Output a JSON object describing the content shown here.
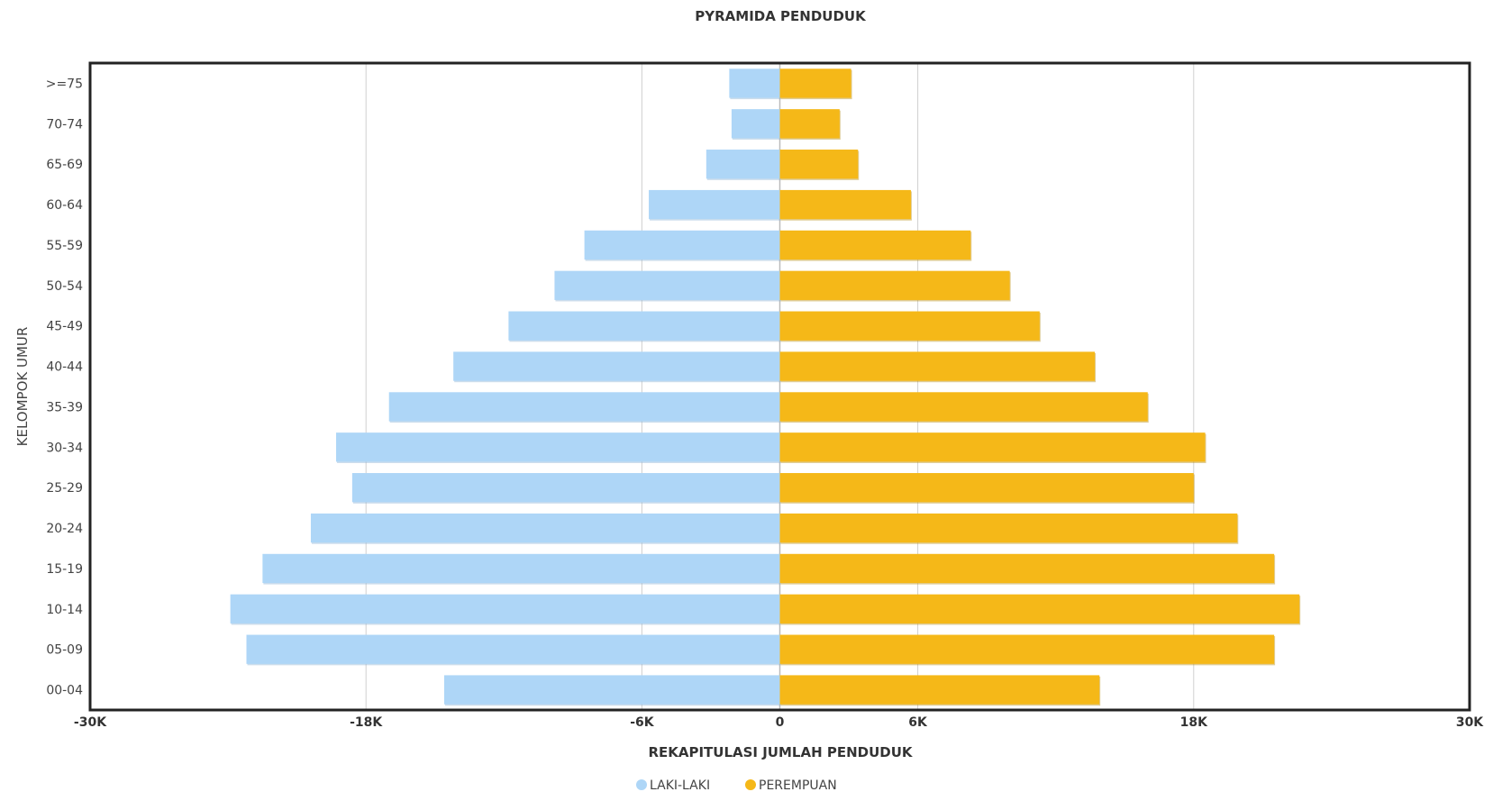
{
  "chart_data": {
    "type": "bar",
    "orientation": "horizontal",
    "title": "PYRAMIDA PENDUDUK",
    "xlabel": "REKAPITULASI JUMLAH PENDUDUK",
    "ylabel": "KELOMPOK UMUR",
    "xlim": [
      -30000,
      30000
    ],
    "xticks": [
      -30000,
      -18000,
      -6000,
      0,
      6000,
      18000,
      30000
    ],
    "xtick_labels": [
      "-30K",
      "-18K",
      "-6K",
      "0",
      "6K",
      "18K",
      "30K"
    ],
    "grid": true,
    "legend_position": "bottom-center",
    "categories": [
      ">=75",
      "70-74",
      "65-69",
      "60-64",
      "55-59",
      "50-54",
      "45-49",
      "40-44",
      "35-39",
      "30-34",
      "25-29",
      "20-24",
      "15-19",
      "10-14",
      "05-09",
      "00-04"
    ],
    "series": [
      {
        "name": "LAKI-LAKI",
        "color": "#aed6f7",
        "values": [
          -2200,
          -2100,
          -3200,
          -5700,
          -8500,
          -9800,
          -11800,
          -14200,
          -17000,
          -19300,
          -18600,
          -20400,
          -22500,
          -23900,
          -23200,
          -14600
        ]
      },
      {
        "name": "PEREMPUAN",
        "color": "#f5b818",
        "values": [
          3100,
          2600,
          3400,
          5700,
          8300,
          10000,
          11300,
          13700,
          16000,
          18500,
          18000,
          19900,
          21500,
          22600,
          21500,
          13900
        ]
      }
    ]
  }
}
